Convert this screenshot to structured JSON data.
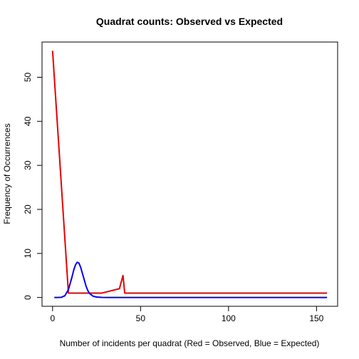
{
  "chart_data": {
    "type": "line",
    "title": "Quadrat counts: Observed vs Expected",
    "xlabel": "Number of incidents per quadrat (Red = Observed, Blue = Expected)",
    "ylabel": "Frequency of Occurrences",
    "xlim": [
      -6,
      162
    ],
    "ylim": [
      -2,
      58
    ],
    "xticks": [
      0,
      50,
      100,
      150
    ],
    "yticks": [
      0,
      10,
      20,
      30,
      40,
      50
    ],
    "grid": false,
    "series": [
      {
        "name": "Observed",
        "color": "#e60000",
        "x": [
          0,
          9,
          28,
          38,
          40,
          41,
          156
        ],
        "y": [
          56,
          1,
          1,
          2,
          5,
          1,
          1
        ]
      },
      {
        "name": "Expected",
        "color": "#0000ff",
        "x": [
          1,
          3,
          5,
          7,
          9,
          10,
          11,
          12,
          13,
          14,
          15,
          16,
          17,
          18,
          19,
          20,
          21,
          23,
          25,
          28,
          31,
          40,
          60,
          100,
          156
        ],
        "y": [
          0,
          0,
          0.05,
          0.4,
          1.8,
          3.2,
          4.6,
          6.2,
          7.4,
          8.0,
          7.8,
          6.8,
          5.4,
          4.0,
          2.6,
          1.6,
          0.9,
          0.3,
          0.1,
          0.02,
          0,
          0,
          0,
          0,
          0
        ]
      }
    ]
  }
}
